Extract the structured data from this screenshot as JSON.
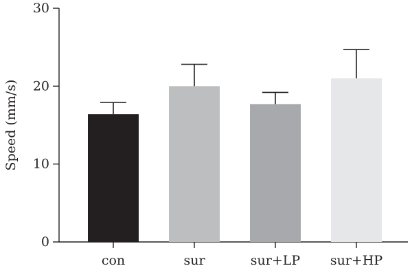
{
  "chart_data": {
    "type": "bar",
    "title": "",
    "xlabel": "",
    "ylabel": "Speed (mm/s)",
    "ylim": [
      0,
      30
    ],
    "yticks": [
      0,
      10,
      20,
      30
    ],
    "grid": false,
    "legend": "none",
    "categories": [
      "con",
      "sur",
      "sur+LP",
      "sur+HP"
    ],
    "values": [
      16.4,
      20.0,
      17.7,
      21.0
    ],
    "error_upper": [
      1.5,
      2.8,
      1.5,
      3.7
    ],
    "colors": [
      "#231f20",
      "#bcbec0",
      "#a7a9ac",
      "#e6e7e8"
    ]
  }
}
